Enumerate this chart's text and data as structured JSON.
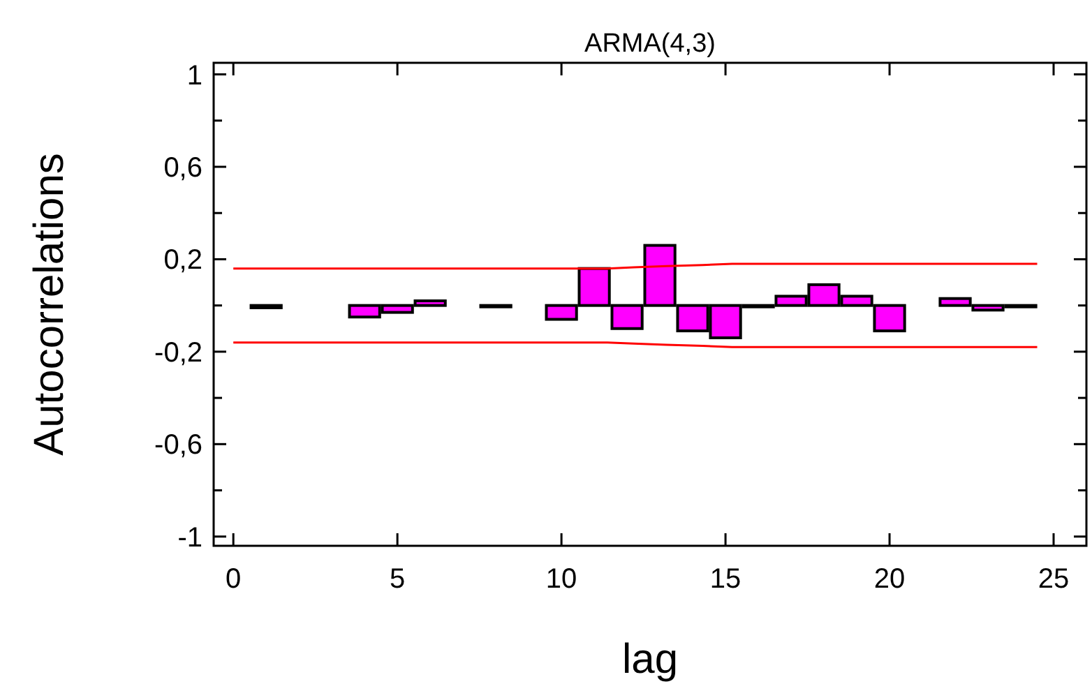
{
  "chart_data": {
    "type": "bar",
    "title": "ARMA(4,3)",
    "xlabel": "lag",
    "ylabel": "Autocorrelations",
    "x": [
      1,
      4,
      5,
      6,
      8,
      10,
      11,
      12,
      13,
      14,
      15,
      16,
      17,
      18,
      19,
      20,
      22,
      23,
      24
    ],
    "series": [
      {
        "color": "#ff00ff",
        "values": [
          -0.01,
          -0.05,
          -0.03,
          0.02,
          0,
          -0.06,
          0.16,
          -0.1,
          0.26,
          -0.11,
          -0.14,
          0,
          0.04,
          0.09,
          0.04,
          -0.11,
          0.03,
          -0.02,
          0
        ]
      },
      {
        "type": "line",
        "color": "#ff0000",
        "x": [
          0,
          11.4,
          12.2,
          13.2,
          14.3,
          15.2,
          24.5
        ],
        "values": [
          0.16,
          0.16,
          0.165,
          0.17,
          0.175,
          0.18,
          0.18
        ]
      },
      {
        "type": "line",
        "color": "#ff0000",
        "x": [
          0,
          11.4,
          12.2,
          13.2,
          14.3,
          15.2,
          24.5
        ],
        "values": [
          -0.16,
          -0.16,
          -0.165,
          -0.17,
          -0.175,
          -0.18,
          -0.18
        ]
      }
    ],
    "xlim": [
      -0.6,
      26
    ],
    "xticks": [
      0,
      5,
      10,
      15,
      20,
      25
    ],
    "ylim": [
      -1.04,
      1.05
    ],
    "yticks": [
      {
        "value": 1,
        "label": "1"
      },
      {
        "value": 0.8,
        "label": null
      },
      {
        "value": 0.6,
        "label": "0,6"
      },
      {
        "value": 0.4,
        "label": null
      },
      {
        "value": 0.2,
        "label": "0,2"
      },
      {
        "value": 0,
        "label": null
      },
      {
        "value": -0.2,
        "label": "-0,2"
      },
      {
        "value": -0.4,
        "label": null
      },
      {
        "value": -0.6,
        "label": "-0,6"
      },
      {
        "value": -0.8,
        "label": null
      },
      {
        "value": -1,
        "label": "-1"
      }
    ],
    "grid": false
  }
}
